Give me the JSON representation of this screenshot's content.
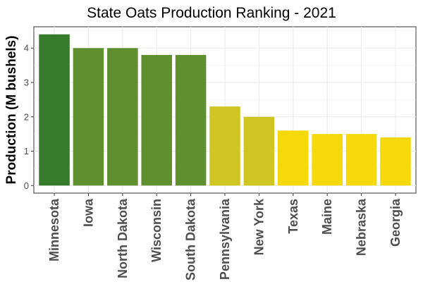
{
  "chart_data": {
    "type": "bar",
    "title": "State Oats Production Ranking - 2021",
    "xlabel": "",
    "ylabel": "Production (M bushels)",
    "categories": [
      "Minnesota",
      "Iowa",
      "North Dakota",
      "Wisconsin",
      "South Dakota",
      "Pennsylvania",
      "New York",
      "Texas",
      "Maine",
      "Nebraska",
      "Georgia"
    ],
    "values": [
      4.4,
      4.0,
      4.0,
      3.8,
      3.8,
      2.3,
      2.0,
      1.6,
      1.5,
      1.5,
      1.4
    ],
    "colors": [
      "#367a2b",
      "#5f8f2f",
      "#5f8f2f",
      "#5f8f2f",
      "#5f8f2f",
      "#d0c523",
      "#d0c523",
      "#f5d90b",
      "#f5d90b",
      "#f5d90b",
      "#f5d90b"
    ],
    "yticks": [
      0,
      1,
      2,
      3,
      4
    ],
    "ylim": [
      -0.22,
      4.62
    ],
    "grid": true,
    "legend": "none"
  }
}
